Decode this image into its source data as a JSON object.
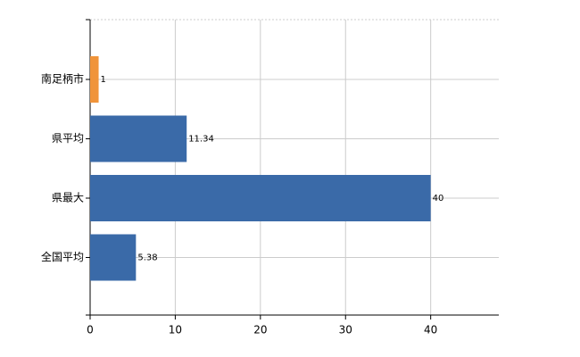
{
  "chart_data": {
    "type": "bar",
    "orientation": "horizontal",
    "categories": [
      "南足柄市",
      "県平均",
      "県最大",
      "全国平均"
    ],
    "values": [
      1,
      11.34,
      40,
      5.38
    ],
    "colors": [
      "#f0943a",
      "#3a6aa8",
      "#3a6aa8",
      "#3a6aa8"
    ],
    "xlim": [
      0,
      48
    ],
    "xticks": [
      0,
      10,
      20,
      30,
      40
    ],
    "grid": true
  }
}
